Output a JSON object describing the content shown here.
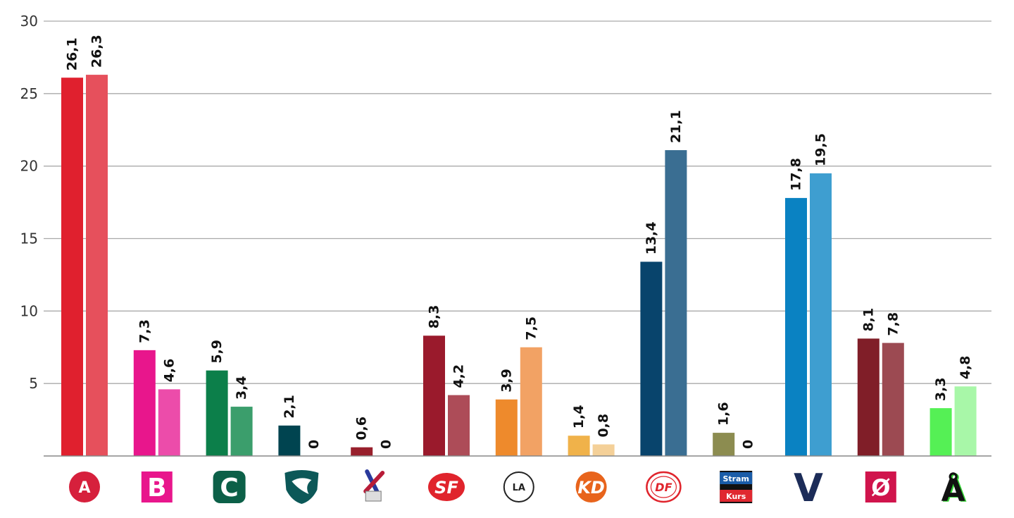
{
  "chart_data": {
    "type": "bar",
    "title": "",
    "xlabel": "",
    "ylabel": "",
    "ylim": [
      0,
      30
    ],
    "yticks": [
      "5",
      "10",
      "15",
      "20",
      "25",
      "30"
    ],
    "categories": [
      {
        "id": "A",
        "logo_text": "A"
      },
      {
        "id": "B",
        "logo_text": "B"
      },
      {
        "id": "C",
        "logo_text": "C"
      },
      {
        "id": "E",
        "logo_text": ""
      },
      {
        "id": "K",
        "logo_text": ""
      },
      {
        "id": "SF",
        "logo_text": "SF"
      },
      {
        "id": "LA",
        "logo_text": "LA"
      },
      {
        "id": "KD",
        "logo_text": "KD"
      },
      {
        "id": "DF",
        "logo_text": "DF"
      },
      {
        "id": "P",
        "logo_text": "Stram",
        "logo_text2": "Kurs"
      },
      {
        "id": "V",
        "logo_text": "V"
      },
      {
        "id": "Ø",
        "logo_text": "Ø"
      },
      {
        "id": "Å",
        "logo_text": "Å"
      }
    ],
    "series": [
      {
        "name": "series1",
        "values": [
          26.1,
          7.3,
          5.9,
          2.1,
          0.6,
          8.3,
          3.9,
          1.4,
          13.4,
          1.6,
          17.8,
          8.1,
          3.3
        ],
        "labels": [
          "26,1",
          "7,3",
          "5,9",
          "2,1",
          "0,6",
          "8,3",
          "3,9",
          "1,4",
          "13,4",
          "1,6",
          "17,8",
          "8,1",
          "3,3"
        ],
        "colors": [
          "#e0202e",
          "#e8168c",
          "#0c7f4a",
          "#004450",
          "#98202c",
          "#9a1a2c",
          "#ee8a2c",
          "#f0b24a",
          "#08446c",
          "#8c8c50",
          "#0a82c2",
          "#801e28",
          "#55f055"
        ]
      },
      {
        "name": "series2",
        "values": [
          26.3,
          4.6,
          3.4,
          0,
          0,
          4.2,
          7.5,
          0.8,
          21.1,
          0,
          19.5,
          7.8,
          4.8
        ],
        "labels": [
          "26,3",
          "4,6",
          "3,4",
          "0",
          "0",
          "4,2",
          "7,5",
          "0,8",
          "21,1",
          "0",
          "19,5",
          "7,8",
          "4,8"
        ],
        "colors": [
          "#e6505c",
          "#ec4caa",
          "#3b9e6c",
          "#2c6870",
          "#b04c56",
          "#ad4c58",
          "#f2a264",
          "#f4d098",
          "#3a6e92",
          "#a4a474",
          "#3e9ed0",
          "#9c4a52",
          "#a8f7a8"
        ]
      }
    ],
    "logo_colors": [
      "#d6203c",
      "#e8168c",
      "#0c6048",
      "#0c5858",
      "#b81c38",
      "#e0242c",
      "#222222",
      "#e8641c",
      "#e0242c",
      "#111111",
      "#1c2c58",
      "#d0144c",
      "#111111"
    ],
    "stram_colors": [
      "#1a5ca8",
      "#e02830"
    ],
    "aa_color": "#32d232",
    "grid": true,
    "grid_color": "#aaaaaa"
  }
}
